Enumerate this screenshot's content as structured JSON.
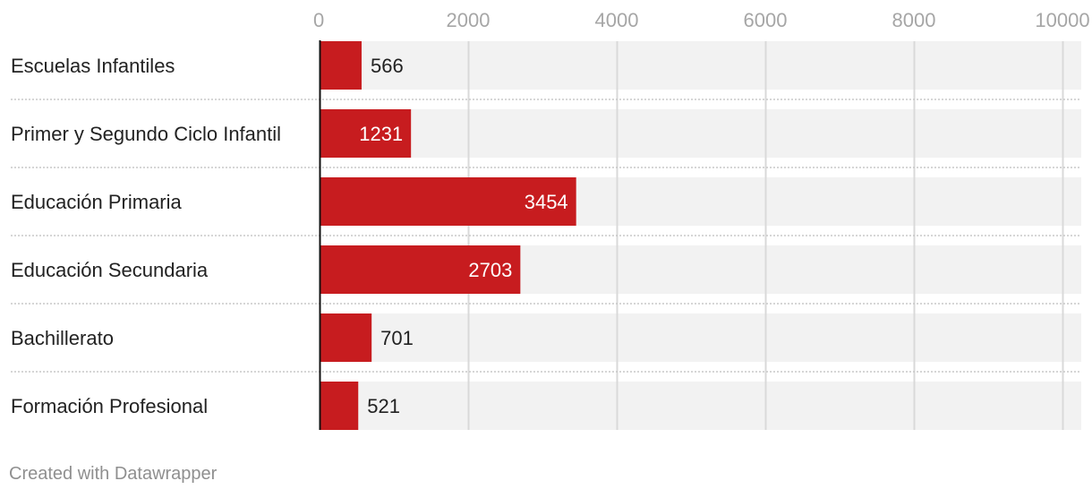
{
  "chart_data": {
    "type": "bar",
    "orientation": "horizontal",
    "categories": [
      "Escuelas Infantiles",
      "Primer y Segundo Ciclo Infantil",
      "Educación Primaria",
      "Educación Secundaria",
      "Bachillerato",
      "Formación Profesional"
    ],
    "values": [
      566,
      1231,
      3454,
      2703,
      701,
      521
    ],
    "value_labels": [
      "566",
      "1231",
      "3454",
      "2703",
      "701",
      "521"
    ],
    "xlim": [
      0,
      10000
    ],
    "ticks": [
      0,
      2000,
      4000,
      6000,
      8000,
      10000
    ],
    "tick_labels": [
      "0",
      "2000",
      "4000",
      "6000",
      "8000",
      "10000"
    ],
    "axis_position": "top",
    "grid": true,
    "colors": {
      "bar": "#c71c1f",
      "bar_background": "#f2f2f2",
      "gridline": "#d9d9d9"
    }
  },
  "footer": {
    "credit": "Created with Datawrapper"
  }
}
